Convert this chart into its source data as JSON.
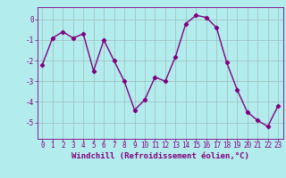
{
  "x": [
    0,
    1,
    2,
    3,
    4,
    5,
    6,
    7,
    8,
    9,
    10,
    11,
    12,
    13,
    14,
    15,
    16,
    17,
    18,
    19,
    20,
    21,
    22,
    23
  ],
  "y": [
    -2.2,
    -0.9,
    -0.6,
    -0.9,
    -0.7,
    -2.5,
    -1.0,
    -2.0,
    -3.0,
    -4.4,
    -3.9,
    -2.8,
    -3.0,
    -1.8,
    -0.2,
    0.2,
    0.1,
    -0.4,
    -2.1,
    -3.4,
    -4.5,
    -4.9,
    -5.2,
    -4.2
  ],
  "line_color": "#800080",
  "marker": "D",
  "marker_size": 2.2,
  "linewidth": 1.0,
  "bg_color": "#b3ecec",
  "grid_color": "#9bbcbc",
  "xlabel": "Windchill (Refroidissement éolien,°C)",
  "ylabel": "",
  "ylim": [
    -5.8,
    0.6
  ],
  "xlim": [
    -0.5,
    23.5
  ],
  "yticks": [
    0,
    -1,
    -2,
    -3,
    -4,
    -5
  ],
  "xticks": [
    0,
    1,
    2,
    3,
    4,
    5,
    6,
    7,
    8,
    9,
    10,
    11,
    12,
    13,
    14,
    15,
    16,
    17,
    18,
    19,
    20,
    21,
    22,
    23
  ],
  "tick_fontsize": 5.5,
  "xlabel_fontsize": 6.5
}
